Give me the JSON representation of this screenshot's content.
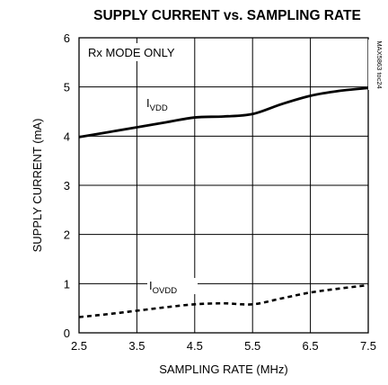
{
  "chart_data": {
    "type": "line",
    "title": "SUPPLY CURRENT vs. SAMPLING RATE",
    "xlabel": "SAMPLING RATE (MHz)",
    "ylabel": "SUPPLY CURRENT (mA)",
    "xlim": [
      2.5,
      7.5
    ],
    "ylim": [
      0,
      6
    ],
    "x_ticks": [
      "2.5",
      "3.5",
      "4.5",
      "5.5",
      "6.5",
      "7.5"
    ],
    "y_ticks": [
      "0",
      "1",
      "2",
      "3",
      "4",
      "5",
      "6"
    ],
    "grid": true,
    "annotation": "Rx MODE ONLY",
    "part_number": "MAX5863 toc24",
    "series": [
      {
        "name_main": "I",
        "name_sub": "VDD",
        "style": "solid",
        "x": [
          2.5,
          3.0,
          3.5,
          4.0,
          4.5,
          5.0,
          5.5,
          6.0,
          6.5,
          7.0,
          7.5
        ],
        "y": [
          3.98,
          4.08,
          4.18,
          4.28,
          4.38,
          4.4,
          4.45,
          4.65,
          4.82,
          4.92,
          4.98
        ]
      },
      {
        "name_main": "I",
        "name_sub": "OVDD",
        "style": "dashed",
        "x": [
          2.5,
          3.0,
          3.5,
          4.0,
          4.5,
          5.0,
          5.5,
          6.0,
          6.5,
          7.0,
          7.5
        ],
        "y": [
          0.32,
          0.38,
          0.45,
          0.52,
          0.58,
          0.6,
          0.58,
          0.7,
          0.82,
          0.9,
          0.97
        ]
      }
    ]
  }
}
